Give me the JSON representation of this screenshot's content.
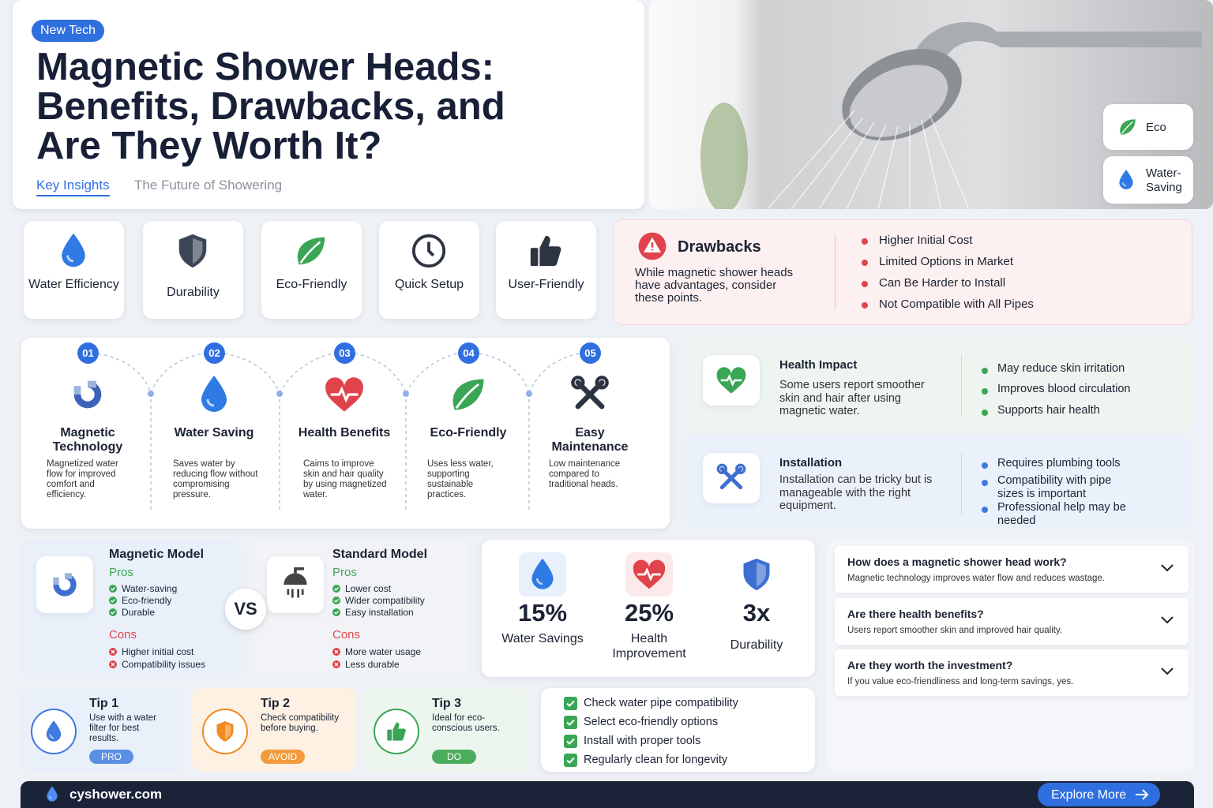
{
  "header": {
    "badge": "New Tech",
    "title": [
      "Magnetic Shower Heads:",
      "Benefits, Drawbacks, and",
      "Are They Worth It?"
    ],
    "tabs": [
      "Key Insights",
      "The Future of Showering"
    ]
  },
  "hero_tags": [
    "Eco",
    "Water-Saving"
  ],
  "features": [
    "Water Efficiency",
    "Durability",
    "Eco-Friendly",
    "Quick Setup",
    "User-Friendly"
  ],
  "drawbacks": {
    "title": "Drawbacks",
    "text": "While magnetic shower heads have advantages, consider these points.",
    "items": [
      "Higher Initial Cost",
      "Limited Options in Market",
      "Can Be Harder to Install",
      "Not Compatible with All Pipes"
    ]
  },
  "steps": [
    {
      "number": "01",
      "title": "Magnetic Technology",
      "text": "Magnetized water flow for improved comfort and efficiency."
    },
    {
      "number": "02",
      "title": "Water Saving",
      "text": "Saves water by reducing flow without compromising pressure."
    },
    {
      "number": "03",
      "title": "Health Benefits",
      "text": "Caims to improve skin and hair quality by using magnetized water."
    },
    {
      "number": "04",
      "title": "Eco-Friendly",
      "text": "Uses less water, supporting sustainable practices."
    },
    {
      "number": "05",
      "title": "Easy Maintenance",
      "text": "Low maintenance compared to traditional heads."
    }
  ],
  "health": {
    "title": "Health Impact",
    "text": "Some users report smoother skin and hair after using magnetic water.",
    "items": [
      "May reduce skin irritation",
      "Improves blood circulation",
      "Supports hair health"
    ]
  },
  "installation": {
    "title": "Installation",
    "text": "Installation can be tricky but is manageable with the right equipment.",
    "items": [
      "Requires plumbing tools",
      "Compatibility with pipe sizes is important",
      "Professional help may be needed"
    ]
  },
  "comparison": {
    "vs": "VS",
    "models": [
      {
        "name": "Magnetic Model",
        "pros_label": "Pros",
        "pros": [
          "Water-saving",
          "Eco-friendly",
          "Durable"
        ],
        "cons_label": "Cons",
        "cons": [
          "Higher initial cost",
          "Compatibility issues"
        ]
      },
      {
        "name": "Standard Model",
        "pros_label": "Pros",
        "pros": [
          "Lower cost",
          "Wider compatibility",
          "Easy installation"
        ],
        "cons_label": "Cons",
        "cons": [
          "More water usage",
          "Less durable"
        ]
      }
    ]
  },
  "stats": [
    {
      "value": "15%",
      "label": "Water Savings"
    },
    {
      "value": "25%",
      "label": "Health Improvement"
    },
    {
      "value": "3x",
      "label": "Durability"
    }
  ],
  "faq": [
    {
      "question": "How does a magnetic shower head work?",
      "answer": "Magnetic technology improves water flow and reduces wastage."
    },
    {
      "question": "Are there health benefits?",
      "answer": "Users report smoother skin and improved hair quality."
    },
    {
      "question": "Are they worth the investment?",
      "answer": "If you value eco-friendliness and long-term savings, yes."
    }
  ],
  "tips": [
    {
      "title": "Tip 1",
      "text": "Use with a water filter for best results.",
      "tag": "PRO"
    },
    {
      "title": "Tip 2",
      "text": "Check compatibility before buying.",
      "tag": "AVOID"
    },
    {
      "title": "Tip 3",
      "text": "Ideal for eco-conscious users.",
      "tag": "DO"
    }
  ],
  "checklist": [
    "Check water pipe compatibility",
    "Select eco-friendly options",
    "Install with proper tools",
    "Regularly clean for longevity"
  ],
  "footer": {
    "site": "cyshower.com",
    "button": "Explore More"
  }
}
